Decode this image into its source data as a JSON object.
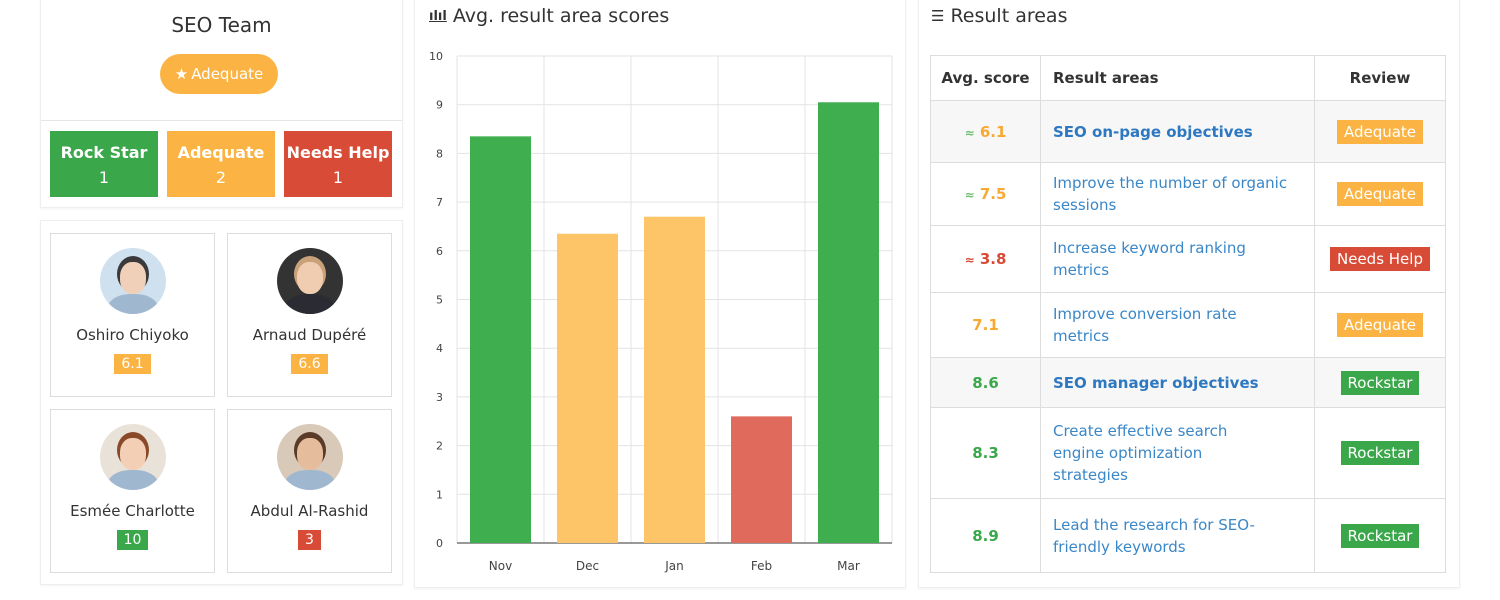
{
  "team": {
    "title": "SEO Team",
    "badge": "Adequate",
    "badge_icon": "star-icon",
    "stats": [
      {
        "label": "Rock Star",
        "count": "1",
        "color": "#3aa84a"
      },
      {
        "label": "Adequate",
        "count": "2",
        "color": "#fbb444"
      },
      {
        "label": "Needs Help",
        "count": "1",
        "color": "#d84b36"
      }
    ],
    "members": [
      {
        "name": "Oshiro Chiyoko",
        "score": "6.1",
        "color": "#fbb444"
      },
      {
        "name": "Arnaud Dupéré",
        "score": "6.6",
        "color": "#fbb444"
      },
      {
        "name": "Esmée Charlotte",
        "score": "10",
        "color": "#3aa84a"
      },
      {
        "name": "Abdul Al-Rashid",
        "score": "3",
        "color": "#d84b36"
      }
    ]
  },
  "chart_panel": {
    "title": "Avg. result area scores",
    "icon": "bar-chart-icon"
  },
  "chart_data": {
    "type": "bar",
    "categories": [
      "Nov",
      "Dec",
      "Jan",
      "Feb",
      "Mar"
    ],
    "values": [
      8.35,
      6.35,
      6.7,
      2.6,
      9.05
    ],
    "colors": [
      "#3fae4f",
      "#fdc567",
      "#fdc567",
      "#e06a5c",
      "#3fae4f"
    ],
    "ylim": [
      0,
      10
    ],
    "yticks": [
      0,
      1,
      2,
      3,
      4,
      5,
      6,
      7,
      8,
      9,
      10
    ],
    "grid": true
  },
  "results": {
    "title": "Result areas",
    "icon": "sliders-icon",
    "headers": [
      "Avg. score",
      "Result areas",
      "Review"
    ],
    "rows": [
      {
        "score": "6.1",
        "trend": "up",
        "score_color": "#f7a934",
        "area": "SEO on-page objectives",
        "group": true,
        "review": "Adequate",
        "review_color": "#fbb444"
      },
      {
        "score": "7.5",
        "trend": "up",
        "score_color": "#f7a934",
        "area": "Improve the number of organic sessions",
        "group": false,
        "review": "Adequate",
        "review_color": "#fbb444"
      },
      {
        "score": "3.8",
        "trend": "down",
        "score_color": "#d84b36",
        "area": "Increase keyword ranking metrics",
        "group": false,
        "review": "Needs Help",
        "review_color": "#d84b36"
      },
      {
        "score": "7.1",
        "trend": "",
        "score_color": "#f7a934",
        "area": "Improve conversion rate metrics",
        "group": false,
        "review": "Adequate",
        "review_color": "#fbb444"
      },
      {
        "score": "8.6",
        "trend": "",
        "score_color": "#3aa84a",
        "area": "SEO manager objectives",
        "group": true,
        "review": "Rockstar",
        "review_color": "#3aa84a"
      },
      {
        "score": "8.3",
        "trend": "",
        "score_color": "#3aa84a",
        "area": "Create effective search engine optimization strategies",
        "group": false,
        "review": "Rockstar",
        "review_color": "#3aa84a"
      },
      {
        "score": "8.9",
        "trend": "",
        "score_color": "#3aa84a",
        "area": "Lead the research for SEO-friendly keywords",
        "group": false,
        "review": "Rockstar",
        "review_color": "#3aa84a"
      }
    ]
  }
}
